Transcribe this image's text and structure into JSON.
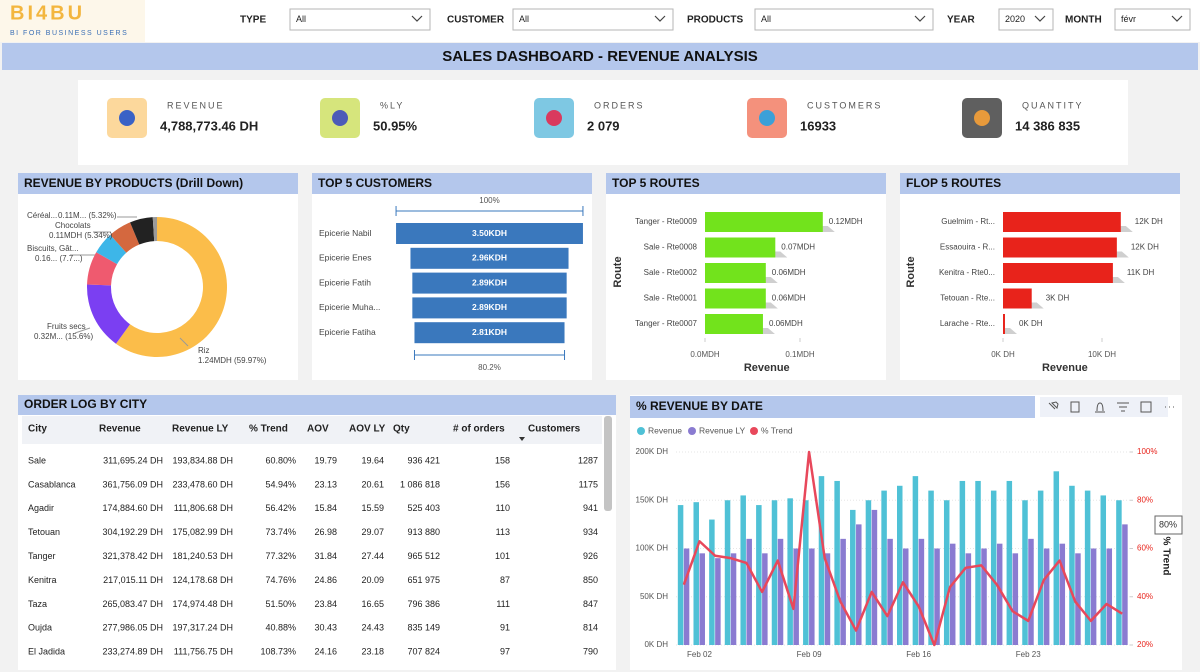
{
  "header": {
    "logo": "BI4BU",
    "tagline": "BI FOR BUSINESS USERS",
    "title": "SALES DASHBOARD - REVENUE ANALYSIS"
  },
  "filters": [
    {
      "label": "TYPE",
      "value": "All"
    },
    {
      "label": "CUSTOMER",
      "value": "All"
    },
    {
      "label": "PRODUCTS",
      "value": "All"
    },
    {
      "label": "YEAR",
      "value": "2020"
    },
    {
      "label": "MONTH",
      "value": "févr"
    }
  ],
  "kpis": [
    {
      "label": "REVENUE",
      "value": "4,788,773.46 DH"
    },
    {
      "label": "%LY",
      "value": "50.95%"
    },
    {
      "label": "ORDERS",
      "value": "2 079"
    },
    {
      "label": "CUSTOMERS",
      "value": "16933"
    },
    {
      "label": "QUANTITY",
      "value": "14 386 835"
    }
  ],
  "table": {
    "title": "ORDER LOG BY CITY",
    "columns": [
      "City",
      "Revenue",
      "Revenue LY",
      "% Trend",
      "AOV",
      "AOV LY",
      "Qty",
      "# of orders",
      "Customers"
    ],
    "rows": [
      [
        "Sale",
        "311,695.24 DH",
        "193,834.88 DH",
        "60.80%",
        "19.79",
        "19.64",
        "936 421",
        "158",
        "1287"
      ],
      [
        "Casablanca",
        "361,756.09 DH",
        "233,478.60 DH",
        "54.94%",
        "23.13",
        "20.61",
        "1 086 818",
        "156",
        "1175"
      ],
      [
        "Agadir",
        "174,884.60 DH",
        "111,806.68 DH",
        "56.42%",
        "15.84",
        "15.59",
        "525 403",
        "110",
        "941"
      ],
      [
        "Tetouan",
        "304,192.29 DH",
        "175,082.99 DH",
        "73.74%",
        "26.98",
        "29.07",
        "913 880",
        "113",
        "934"
      ],
      [
        "Tanger",
        "321,378.42 DH",
        "181,240.53 DH",
        "77.32%",
        "31.84",
        "27.44",
        "965 512",
        "101",
        "926"
      ],
      [
        "Kenitra",
        "217,015.11 DH",
        "124,178.68 DH",
        "74.76%",
        "24.86",
        "20.09",
        "651 975",
        "87",
        "850"
      ],
      [
        "Taza",
        "265,083.47 DH",
        "174,974.48 DH",
        "51.50%",
        "23.84",
        "16.65",
        "796 386",
        "111",
        "847"
      ],
      [
        "Oujda",
        "277,986.05 DH",
        "197,317.24 DH",
        "40.88%",
        "30.43",
        "24.43",
        "835 149",
        "91",
        "814"
      ],
      [
        "El Jadida",
        "233,274.89 DH",
        "111,756.75 DH",
        "108.73%",
        "24.16",
        "23.18",
        "707 824",
        "97",
        "790"
      ]
    ]
  },
  "chart_data": [
    {
      "type": "pie",
      "title": "REVENUE BY PRODUCTS (Drill Down)",
      "categories": [
        "Riz",
        "Fruits secs",
        "Biscuits, Gât...",
        null,
        "Chocolats",
        "Céréal...",
        null
      ],
      "values": [
        59.97,
        15.6,
        7.7,
        5.1,
        5.34,
        5.32,
        0.97
      ],
      "value_labels": [
        "1.24MDH (59.97%)",
        "0.32M... (15.6%)",
        "0.16... (7.7...)",
        null,
        "0.11MDH (5.34%)",
        "0.11M... (5.32%)",
        null
      ],
      "colors": [
        "#fbbd4a",
        "#7b3ff2",
        "#ef5a6f",
        "#3db6e8",
        "#d4683f",
        "#222222",
        "#9a9a9a"
      ]
    },
    {
      "type": "funnel",
      "title": "TOP 5 CUSTOMERS",
      "categories": [
        "Epicerie Nabil",
        "Epicerie Enes",
        "Epicerie Fatih",
        "Epicerie Muha...",
        "Epicerie Fatiha"
      ],
      "values": [
        3.5,
        2.96,
        2.89,
        2.89,
        2.81
      ],
      "value_labels": [
        "3.50KDH",
        "2.96KDH",
        "2.89KDH",
        "2.89KDH",
        "2.81KDH"
      ],
      "top_label": "100%",
      "bottom_label": "80.2%",
      "color": "#3a78bd"
    },
    {
      "type": "bar",
      "title": "TOP 5 ROUTES",
      "orientation": "horizontal",
      "categories": [
        "Tanger - Rte0009",
        "Sale - Rte0008",
        "Sale - Rte0002",
        "Sale - Rte0001",
        "Tanger - Rte0007"
      ],
      "values": [
        0.124,
        0.074,
        0.064,
        0.064,
        0.061
      ],
      "value_labels": [
        "0.12MDH",
        "0.07MDH",
        "0.06MDH",
        "0.06MDH",
        "0.06MDH"
      ],
      "xlim": [
        0,
        0.13
      ],
      "xticks": [
        {
          "value": 0,
          "label": "0.0MDH"
        },
        {
          "value": 0.1,
          "label": "0.1MDH"
        }
      ],
      "x_label": "Revenue",
      "y_label": "Route",
      "color": "#72e31c"
    },
    {
      "type": "bar",
      "title": "FLOP 5 ROUTES",
      "orientation": "horizontal",
      "categories": [
        "Guelmim - Rt...",
        "Essaouira - R...",
        "Kenitra - Rte0...",
        "Tetouan - Rte...",
        "Larache - Rte..."
      ],
      "values": [
        11.9,
        11.5,
        11.1,
        2.9,
        0.2
      ],
      "value_labels": [
        "12K DH",
        "12K DH",
        "11K DH",
        "3K DH",
        "0K DH"
      ],
      "xlim": [
        0,
        12.5
      ],
      "xticks": [
        {
          "value": 0,
          "label": "0K DH"
        },
        {
          "value": 10,
          "label": "10K DH"
        }
      ],
      "x_label": "Revenue",
      "y_label": "Route",
      "color": "#e8231b"
    },
    {
      "type": "combo",
      "title": "% REVENUE BY DATE",
      "categories": [
        null,
        "Feb 02",
        null,
        null,
        null,
        null,
        null,
        null,
        "Feb 09",
        null,
        null,
        null,
        null,
        null,
        null,
        "Feb 16",
        null,
        null,
        null,
        null,
        null,
        null,
        "Feb 23",
        null,
        null,
        null,
        null,
        null,
        null
      ],
      "series": [
        {
          "name": "Revenue",
          "color": "#4fc1d6",
          "values": [
            145,
            148,
            130,
            150,
            155,
            145,
            150,
            152,
            150,
            175,
            170,
            140,
            150,
            160,
            165,
            175,
            160,
            150,
            170,
            170,
            160,
            170,
            150,
            160,
            180,
            165,
            160,
            155,
            150
          ]
        },
        {
          "name": "Revenue LY",
          "color": "#8a7bd1",
          "values": [
            100,
            95,
            90,
            95,
            110,
            95,
            110,
            100,
            100,
            95,
            110,
            125,
            140,
            110,
            100,
            110,
            100,
            105,
            95,
            100,
            105,
            95,
            110,
            100,
            105,
            95,
            100,
            100,
            125
          ]
        },
        {
          "name": "% Trend",
          "color": "#e8485b",
          "axis": "y2",
          "values": [
            45,
            63,
            57,
            56,
            54,
            42,
            55,
            35,
            100,
            56,
            38,
            26,
            42,
            32,
            46,
            36,
            20,
            44,
            52,
            53,
            45,
            34,
            30,
            47,
            55,
            38,
            30,
            37,
            33
          ]
        }
      ],
      "ylim": [
        0,
        200
      ],
      "yticks": [
        {
          "value": 0,
          "label": "0K DH"
        },
        {
          "value": 50,
          "label": "50K DH"
        },
        {
          "value": 100,
          "label": "100K DH"
        },
        {
          "value": 150,
          "label": "150K DH"
        },
        {
          "value": 200,
          "label": "200K DH"
        }
      ],
      "y2lim": [
        20,
        100
      ],
      "y2ticks": [
        {
          "value": 20,
          "label": "20%"
        },
        {
          "value": 40,
          "label": "40%"
        },
        {
          "value": 60,
          "label": "60%"
        },
        {
          "value": 80,
          "label": "80%"
        },
        {
          "value": 100,
          "label": "100%"
        }
      ],
      "y2_label": "% Trend",
      "annotation": "80%"
    }
  ]
}
